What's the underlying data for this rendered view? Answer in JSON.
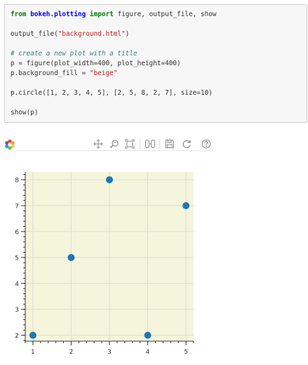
{
  "code_cell": {
    "lines": [
      [
        {
          "t": "from",
          "c": "kw"
        },
        {
          "t": " "
        },
        {
          "t": "bokeh.plotting",
          "c": "mod"
        },
        {
          "t": " "
        },
        {
          "t": "import",
          "c": "kw"
        },
        {
          "t": " figure, output_file, show"
        }
      ],
      [],
      [
        {
          "t": "output_file("
        },
        {
          "t": "\"background.html\"",
          "c": "str"
        },
        {
          "t": ")"
        }
      ],
      [],
      [
        {
          "t": "# create a new plot with a title",
          "c": "cm"
        }
      ],
      [
        {
          "t": "p = figure(plot_width=400, plot_height=400)"
        }
      ],
      [
        {
          "t": "p.background_fill = "
        },
        {
          "t": "\"beige\"",
          "c": "str"
        }
      ],
      [],
      [
        {
          "t": "p.circle([1, 2, 3, 4, 5], [2, 5, 8, 2, 7], size=10)"
        }
      ],
      [],
      [
        {
          "t": "show(p)"
        }
      ]
    ]
  },
  "toolbar": {
    "logo_icon": "bokeh-logo-icon",
    "tools": [
      {
        "name": "pan-tool",
        "icon": "pan-icon",
        "active": true
      },
      {
        "name": "wheel-zoom-tool",
        "icon": "wheel-zoom-icon",
        "active": false
      },
      {
        "name": "box-zoom-tool",
        "icon": "box-zoom-icon",
        "active": false
      },
      {
        "name": "resize-tool",
        "icon": "resize-icon",
        "active": true
      },
      {
        "name": "save-tool",
        "icon": "save-icon",
        "active": false
      },
      {
        "name": "reset-tool",
        "icon": "reset-icon",
        "active": false
      },
      {
        "name": "help-tool",
        "icon": "help-icon",
        "active": false
      }
    ]
  },
  "colors": {
    "plot_background": "#f5f5dc",
    "marker": "#1f77b4",
    "grid": "#dcdccd"
  },
  "chart_data": {
    "type": "scatter",
    "x": [
      1,
      2,
      3,
      4,
      5
    ],
    "y": [
      2,
      5,
      8,
      2,
      7
    ],
    "xlim": [
      0.8,
      5.2
    ],
    "ylim": [
      1.8,
      8.3
    ],
    "x_ticks": [
      1,
      2,
      3,
      4,
      5
    ],
    "y_ticks": [
      2,
      3,
      4,
      5,
      6,
      7,
      8
    ],
    "grid": true,
    "title": "",
    "xlabel": "",
    "ylabel": ""
  }
}
